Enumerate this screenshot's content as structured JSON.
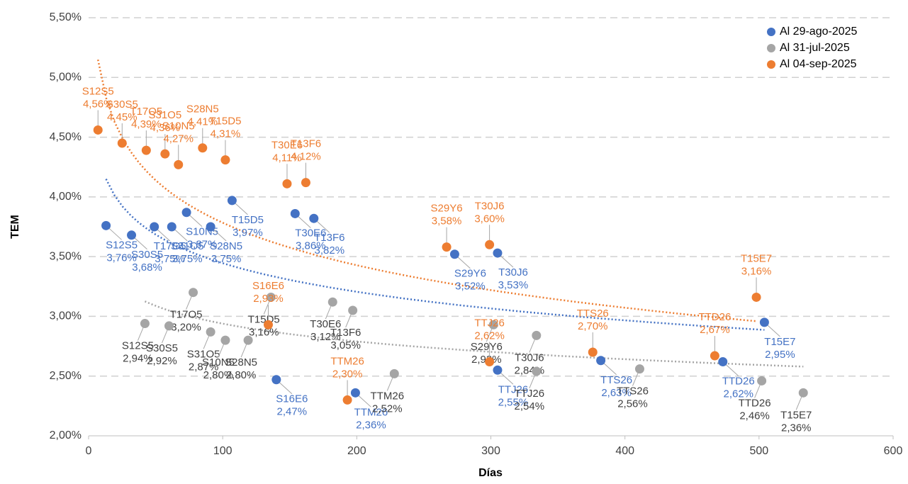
{
  "chart_data": {
    "type": "scatter",
    "x_label": "Días",
    "y_label": "TEM",
    "xlim": [
      0,
      600
    ],
    "xticks": [
      0,
      100,
      200,
      300,
      400,
      500,
      600
    ],
    "ylim": [
      2.0,
      5.5
    ],
    "yticks": [
      {
        "value": 2.0,
        "label": "2,00%"
      },
      {
        "value": 2.5,
        "label": "2,50%"
      },
      {
        "value": 3.0,
        "label": "3,00%"
      },
      {
        "value": 3.5,
        "label": "3,50%"
      },
      {
        "value": 4.0,
        "label": "4,00%"
      },
      {
        "value": 4.5,
        "label": "4,50%"
      },
      {
        "value": 5.0,
        "label": "5,00%"
      },
      {
        "value": 5.5,
        "label": "5,50%"
      }
    ],
    "grid": true,
    "trendline": "log",
    "legend": "top-right",
    "series": [
      {
        "name": "Al 29-ago-2025",
        "color": "#4472c4",
        "label_color": "#4472c4",
        "labels": [
          "S12S5",
          "S30S5",
          "T17O5",
          "S31O5",
          "S10N5",
          "S28N5",
          "T15D5",
          "T30E6",
          "T13F6",
          "S16E6",
          "TTM26",
          "S29Y6",
          "TTJ26",
          "T30J6",
          "TTS26",
          "TTD26",
          "T15E7"
        ],
        "x": [
          13,
          32,
          49,
          62,
          73,
          91,
          107,
          154,
          168,
          140,
          199,
          273,
          305,
          305,
          382,
          473,
          504
        ],
        "values": [
          3.76,
          3.68,
          3.75,
          3.75,
          3.87,
          3.75,
          3.97,
          3.86,
          3.82,
          2.47,
          2.36,
          3.52,
          2.55,
          3.53,
          2.63,
          2.62,
          2.95
        ],
        "value_labels": [
          "3,76%",
          "3,68%",
          "3,75%",
          "3,75%",
          "3,87%",
          "3,75%",
          "3,97%",
          "3,86%",
          "3,82%",
          "2,47%",
          "2,36%",
          "3,52%",
          "2,55%",
          "3,53%",
          "2,63%",
          "2,62%",
          "2,95%"
        ]
      },
      {
        "name": "Al 31-jul-2025",
        "color": "#a5a5a5",
        "label_color": "#404040",
        "labels": [
          "S12S5",
          "S30S5",
          "T17O5",
          "S31O5",
          "S10N5",
          "S28N5",
          "T15D5",
          "T30E6",
          "T13F6",
          "TTM26",
          "S29Y6",
          "T30J6",
          "TTJ26",
          "TTS26",
          "TTD26",
          "T15E7"
        ],
        "x": [
          42,
          60,
          78,
          91,
          102,
          119,
          136,
          182,
          197,
          228,
          302,
          334,
          334,
          411,
          502,
          533
        ],
        "values": [
          2.94,
          2.92,
          3.2,
          2.87,
          2.8,
          2.8,
          3.16,
          3.12,
          3.05,
          2.52,
          2.93,
          2.84,
          2.54,
          2.56,
          2.46,
          2.36
        ],
        "value_labels": [
          "2,94%",
          "2,92%",
          "3,20%",
          "2,87%",
          "2,80%",
          "2,80%",
          "3,16%",
          "3,12%",
          "3,05%",
          "2,52%",
          "2,93%",
          "2,84%",
          "2,54%",
          "2,56%",
          "2,46%",
          "2,36%"
        ]
      },
      {
        "name": "Al 04-sep-2025",
        "color": "#ed7d31",
        "label_color": "#ed7d31",
        "labels": [
          "S12S5",
          "S30S5",
          "T17O5",
          "S31O5",
          "S10N5",
          "S28N5",
          "T15D5",
          "T30E6",
          "T13F6",
          "S16E6",
          "TTM26",
          "S29Y6",
          "TTJ26",
          "T30J6",
          "TTS26",
          "TTD26",
          "T15E7"
        ],
        "x": [
          7,
          25,
          43,
          57,
          67,
          85,
          102,
          148,
          162,
          134,
          193,
          267,
          299,
          299,
          376,
          467,
          498
        ],
        "values": [
          4.56,
          4.45,
          4.39,
          4.36,
          4.27,
          4.41,
          4.31,
          4.11,
          4.12,
          2.93,
          2.3,
          3.58,
          2.62,
          3.6,
          2.7,
          2.67,
          3.16
        ],
        "value_labels": [
          "4,56%",
          "4,45%",
          "4,39%",
          "4,36%",
          "4,27%",
          "4,41%",
          "4,31%",
          "4,11%",
          "4,12%",
          "2,93%",
          "2,30%",
          "3,58%",
          "2,62%",
          "3,60%",
          "2,70%",
          "2,67%",
          "3,16%"
        ]
      }
    ]
  }
}
